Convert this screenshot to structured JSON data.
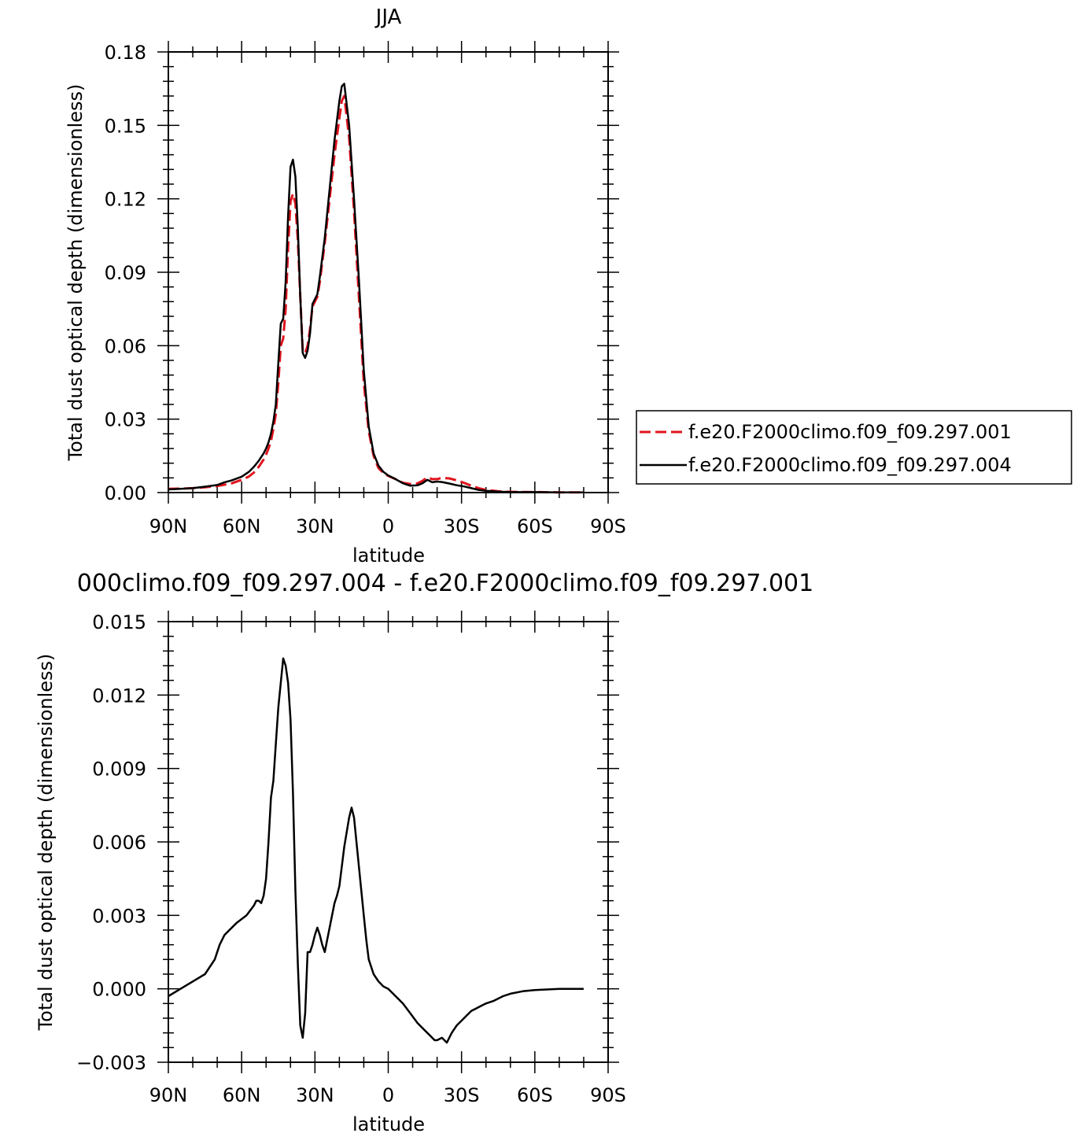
{
  "chart_data": [
    {
      "type": "line",
      "title": "JJA",
      "xlabel": "latitude",
      "ylabel": "Total dust optical depth (dimensionless)",
      "xlim": [
        90,
        -90
      ],
      "ylim": [
        0,
        0.18
      ],
      "x_ticks": [
        90,
        60,
        30,
        0,
        -30,
        -60,
        -90
      ],
      "x_tick_labels": [
        "90N",
        "60N",
        "30N",
        "0",
        "30S",
        "60S",
        "90S"
      ],
      "y_ticks": [
        0,
        0.03,
        0.06,
        0.09,
        0.12,
        0.15,
        0.18
      ],
      "y_tick_labels": [
        "0.00",
        "0.03",
        "0.06",
        "0.09",
        "0.12",
        "0.15",
        "0.18"
      ],
      "legend_position": "right",
      "series": [
        {
          "name": "f.e20.F2000climo.f09_f09.297.001",
          "color": "#e0141e",
          "dash": "dashed",
          "x": [
            90,
            85,
            80,
            75,
            70,
            67,
            64,
            60,
            57,
            55,
            53,
            51,
            50,
            49,
            48,
            47,
            46,
            45,
            44,
            43,
            42,
            41,
            40,
            39,
            38,
            37,
            36,
            35,
            34,
            33,
            32,
            31,
            30,
            29,
            28,
            26,
            24,
            22,
            20,
            19,
            18,
            16,
            14,
            12,
            10,
            8,
            6,
            4,
            2,
            0,
            -3,
            -6,
            -9,
            -12,
            -14,
            -16,
            -18,
            -20,
            -22,
            -25,
            -28,
            -31,
            -34,
            -37,
            -40,
            -45,
            -50,
            -60,
            -70,
            -80
          ],
          "y": [
            0.0015,
            0.0016,
            0.0018,
            0.0022,
            0.0027,
            0.0032,
            0.0038,
            0.0052,
            0.0066,
            0.0082,
            0.0105,
            0.0135,
            0.0155,
            0.018,
            0.021,
            0.026,
            0.032,
            0.045,
            0.06,
            0.063,
            0.075,
            0.1,
            0.119,
            0.122,
            0.118,
            0.103,
            0.08,
            0.058,
            0.057,
            0.06,
            0.067,
            0.076,
            0.078,
            0.08,
            0.086,
            0.102,
            0.12,
            0.138,
            0.153,
            0.16,
            0.162,
            0.145,
            0.115,
            0.08,
            0.045,
            0.025,
            0.015,
            0.01,
            0.008,
            0.0068,
            0.0055,
            0.004,
            0.0035,
            0.0038,
            0.0048,
            0.0062,
            0.0055,
            0.0055,
            0.006,
            0.0058,
            0.005,
            0.004,
            0.0028,
            0.0018,
            0.0011,
            0.0005,
            0.0003,
            0.0002,
            0.0001,
            0.0001
          ]
        },
        {
          "name": "f.e20.F2000climo.f09_f09.297.004",
          "color": "#000000",
          "dash": "solid",
          "x": [
            90,
            85,
            80,
            75,
            70,
            67,
            64,
            60,
            57,
            55,
            53,
            51,
            50,
            49,
            48,
            47,
            46,
            45,
            44,
            43,
            42,
            41,
            40,
            39,
            38,
            37,
            36,
            35,
            34,
            33,
            32,
            31,
            30,
            29,
            28,
            26,
            24,
            22,
            20,
            19,
            18,
            16,
            14,
            12,
            10,
            8,
            6,
            4,
            2,
            0,
            -3,
            -6,
            -9,
            -12,
            -14,
            -16,
            -18,
            -20,
            -22,
            -25,
            -28,
            -31,
            -34,
            -37,
            -40,
            -45,
            -50,
            -60,
            -70,
            -80
          ],
          "y": [
            0.0013,
            0.0015,
            0.0018,
            0.0024,
            0.0031,
            0.0042,
            0.005,
            0.0065,
            0.0085,
            0.0105,
            0.013,
            0.016,
            0.018,
            0.0205,
            0.024,
            0.029,
            0.036,
            0.053,
            0.069,
            0.071,
            0.086,
            0.113,
            0.133,
            0.136,
            0.129,
            0.108,
            0.08,
            0.057,
            0.055,
            0.058,
            0.065,
            0.077,
            0.079,
            0.081,
            0.088,
            0.104,
            0.124,
            0.144,
            0.16,
            0.166,
            0.167,
            0.15,
            0.12,
            0.087,
            0.05,
            0.027,
            0.016,
            0.011,
            0.0085,
            0.007,
            0.0055,
            0.0038,
            0.0028,
            0.003,
            0.0038,
            0.0052,
            0.0042,
            0.0045,
            0.0043,
            0.0037,
            0.003,
            0.0025,
            0.0018,
            0.0011,
            0.0007,
            0.0004,
            0.0002,
            0.0002,
            0.0001,
            0.0001
          ]
        }
      ]
    },
    {
      "type": "line",
      "title": "000climo.f09_f09.297.004 - f.e20.F2000climo.f09_f09.297.001",
      "xlabel": "latitude",
      "ylabel": "Total dust optical depth (dimensionless)",
      "xlim": [
        90,
        -90
      ],
      "ylim": [
        -0.003,
        0.015
      ],
      "x_ticks": [
        90,
        60,
        30,
        0,
        -30,
        -60,
        -90
      ],
      "x_tick_labels": [
        "90N",
        "60N",
        "30N",
        "0",
        "30S",
        "60S",
        "90S"
      ],
      "y_ticks": [
        -0.003,
        0,
        0.003,
        0.006,
        0.009,
        0.012,
        0.015
      ],
      "y_tick_labels": [
        "-0.003",
        "0.000",
        "0.003",
        "0.006",
        "0.009",
        "0.012",
        "0.015"
      ],
      "series": [
        {
          "color": "#000000",
          "dash": "solid",
          "x": [
            90,
            85,
            80,
            75,
            71,
            69,
            67,
            65,
            62,
            58,
            55,
            54,
            53,
            52,
            51,
            50,
            49,
            48,
            47,
            46,
            45,
            44,
            43,
            42,
            41,
            40,
            39,
            38,
            37,
            36,
            35,
            34,
            33,
            32,
            31,
            30,
            29,
            28,
            27,
            26,
            25,
            24,
            23,
            22,
            21,
            20,
            19,
            18,
            17,
            16,
            15,
            14,
            13,
            12,
            11,
            10,
            9,
            8,
            6,
            4,
            2,
            0,
            -3,
            -6,
            -9,
            -12,
            -15,
            -17,
            -19,
            -20,
            -22,
            -24,
            -26,
            -28,
            -30,
            -32,
            -34,
            -36,
            -38,
            -40,
            -43,
            -47,
            -50,
            -55,
            -60,
            -70,
            -80
          ],
          "y": [
            -0.0003,
            0.0,
            0.0003,
            0.0006,
            0.0012,
            0.0018,
            0.0022,
            0.0024,
            0.0027,
            0.003,
            0.0034,
            0.0036,
            0.0036,
            0.0035,
            0.0038,
            0.0045,
            0.006,
            0.0078,
            0.0085,
            0.01,
            0.0115,
            0.0125,
            0.0135,
            0.0132,
            0.0125,
            0.011,
            0.008,
            0.004,
            0.001,
            -0.0015,
            -0.002,
            -0.001,
            0.0015,
            0.0015,
            0.0018,
            0.0022,
            0.0025,
            0.0022,
            0.0018,
            0.0015,
            0.002,
            0.0025,
            0.003,
            0.0035,
            0.0038,
            0.0042,
            0.005,
            0.0058,
            0.0064,
            0.007,
            0.0074,
            0.007,
            0.006,
            0.005,
            0.004,
            0.003,
            0.002,
            0.0012,
            0.0006,
            0.0003,
            0.0001,
            0.0,
            -0.0003,
            -0.0006,
            -0.001,
            -0.0014,
            -0.0017,
            -0.0019,
            -0.0021,
            -0.0021,
            -0.002,
            -0.0022,
            -0.0018,
            -0.0015,
            -0.0013,
            -0.0011,
            -0.0009,
            -0.0008,
            -0.0007,
            -0.0006,
            -0.0005,
            -0.0003,
            -0.0002,
            -0.0001,
            -5e-05,
            0.0,
            0.0
          ]
        }
      ]
    }
  ]
}
